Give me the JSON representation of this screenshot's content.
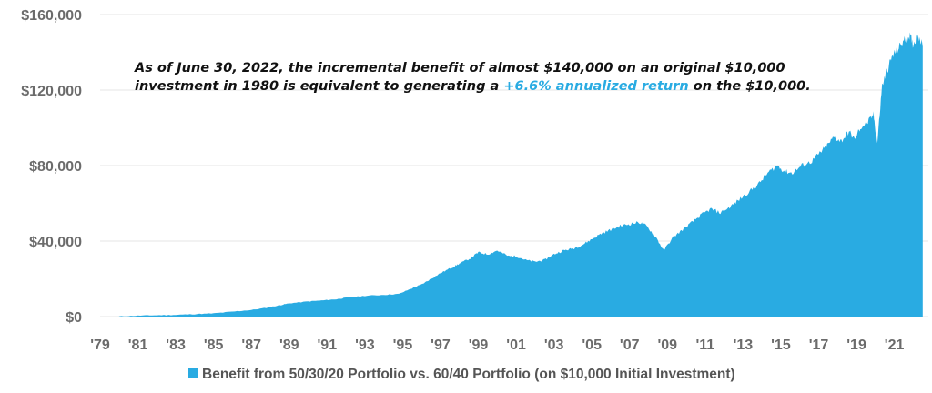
{
  "chart_data": {
    "type": "area",
    "ylim": [
      0,
      160000
    ],
    "y_ticks": [
      "$0",
      "$40,000",
      "$80,000",
      "$120,000",
      "$160,000"
    ],
    "y_tick_values": [
      0,
      40000,
      80000,
      120000,
      160000
    ],
    "x_ticks": [
      "'79",
      "'81",
      "'83",
      "'85",
      "'87",
      "'89",
      "'91",
      "'93",
      "'95",
      "'97",
      "'99",
      "'01",
      "'03",
      "'05",
      "'07",
      "'09",
      "'11",
      "'13",
      "'15",
      "'17",
      "'19",
      "'21"
    ],
    "x_tick_years": [
      1979,
      1981,
      1983,
      1985,
      1987,
      1989,
      1991,
      1993,
      1995,
      1997,
      1999,
      2001,
      2003,
      2005,
      2007,
      2009,
      2011,
      2013,
      2015,
      2017,
      2019,
      2021
    ],
    "xlim": [
      1979,
      2022.8
    ],
    "grid": true,
    "legend_position": "bottom-center",
    "colors": {
      "series": "#29ABE2",
      "highlight": "#29ABE2",
      "grid": "#e6e6e6",
      "ticks": "#6b6b6b"
    },
    "annotation": {
      "line1": "As of June 30, 2022, the incremental benefit of almost $140,000 on an original $10,000",
      "line2_before": "investment in 1980 is equivalent to generating a ",
      "line2_highlight": "+6.6% annualized return",
      "line2_after": " on the $10,000."
    },
    "series": [
      {
        "name": "Benefit from 50/30/20 Portfolio vs. 60/40 Portfolio (on $10,000 Initial Investment)",
        "x": [
          1980.0,
          1981.0,
          1982.0,
          1983.0,
          1984.0,
          1985.0,
          1986.0,
          1987.0,
          1987.9,
          1988.5,
          1989.0,
          1990.0,
          1990.8,
          1991.5,
          1992.0,
          1993.0,
          1994.0,
          1994.8,
          1995.5,
          1996.0,
          1996.5,
          1997.0,
          1997.6,
          1998.0,
          1998.6,
          1999.0,
          1999.5,
          2000.0,
          2000.6,
          2001.0,
          2001.5,
          2002.0,
          2002.5,
          2003.0,
          2003.5,
          2004.0,
          2004.5,
          2005.0,
          2005.5,
          2006.0,
          2006.5,
          2007.0,
          2007.5,
          2007.9,
          2008.4,
          2008.8,
          2009.3,
          2009.8,
          2010.3,
          2010.8,
          2011.3,
          2011.8,
          2012.3,
          2012.8,
          2013.3,
          2013.8,
          2014.3,
          2014.8,
          2015.2,
          2015.6,
          2016.1,
          2016.6,
          2017.0,
          2017.4,
          2017.8,
          2018.2,
          2018.6,
          2018.9,
          2019.2,
          2019.6,
          2019.9,
          2020.1,
          2020.35,
          2020.6,
          2020.9,
          2021.2,
          2021.5,
          2021.8,
          2022.0,
          2022.25,
          2022.5
        ],
        "values": [
          100,
          500,
          700,
          900,
          1300,
          1700,
          2600,
          3500,
          4800,
          6000,
          7000,
          8000,
          8600,
          9200,
          10000,
          11000,
          11500,
          12000,
          15000,
          17000,
          20000,
          23000,
          26000,
          28000,
          31000,
          34000,
          33000,
          35000,
          32000,
          32000,
          30000,
          29000,
          30000,
          33000,
          35000,
          36000,
          38000,
          41000,
          44000,
          46000,
          48000,
          49000,
          50000,
          48000,
          42000,
          35000,
          42000,
          46000,
          50000,
          54000,
          57000,
          55000,
          58000,
          62000,
          66000,
          70000,
          76000,
          80000,
          77000,
          76000,
          80000,
          82000,
          86000,
          90000,
          95000,
          93000,
          98000,
          94000,
          100000,
          103000,
          107000,
          92000,
          122000,
          130000,
          138000,
          142000,
          146000,
          149000,
          144000,
          150000,
          143000
        ]
      }
    ]
  }
}
